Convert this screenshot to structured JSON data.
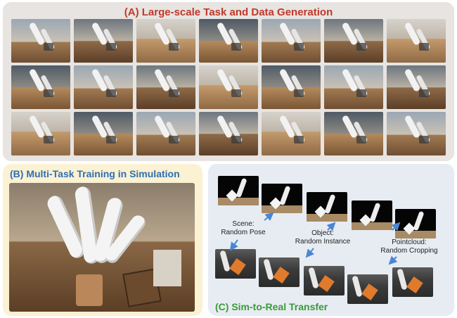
{
  "panel_a": {
    "title": "(A) Large-scale Task and Data Generation"
  },
  "panel_b": {
    "title": "(B) Multi-Task Training in Simulation"
  },
  "panel_c": {
    "title": "(C) Sim-to-Real Transfer",
    "captions": [
      {
        "line1": "Scene:",
        "line2": "Random Pose"
      },
      {
        "line1": "Object:",
        "line2": "Random Instance"
      },
      {
        "line1": "Pointcloud:",
        "line2": "Random Cropping"
      }
    ]
  },
  "colors": {
    "panel_a_title": "#c0392b",
    "panel_b_title": "#2e6fb3",
    "panel_c_title": "#3a9a3a",
    "arrow": "#4a86d4"
  }
}
